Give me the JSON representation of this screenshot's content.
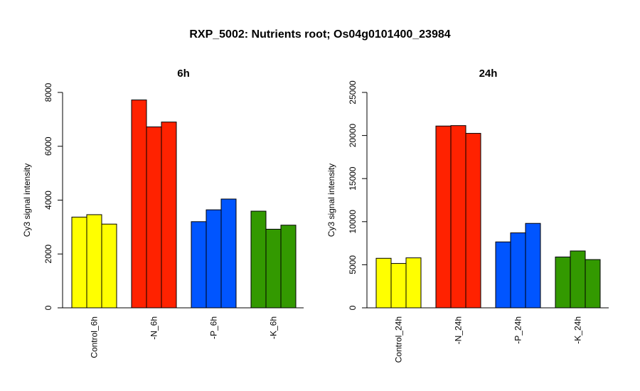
{
  "title": "RXP_5002: Nutrients root; Os04g0101400_23984",
  "chart_data": [
    {
      "type": "bar",
      "title": "6h",
      "ylabel": "Cy3 signal intensity",
      "ylim": [
        0,
        8000
      ],
      "yticks": [
        0,
        2000,
        4000,
        6000,
        8000
      ],
      "categories": [
        "Control_6h",
        "-N_6h",
        "-P_6h",
        "-K_6h"
      ],
      "colors": [
        "#FFFF00",
        "#FF2200",
        "#0055FF",
        "#339900"
      ],
      "values": [
        [
          3370,
          3460,
          3110
        ],
        [
          7720,
          6720,
          6900
        ],
        [
          3200,
          3640,
          4040
        ],
        [
          3590,
          2920,
          3070
        ]
      ]
    },
    {
      "type": "bar",
      "title": "24h",
      "ylabel": "Cy3 signal intensity",
      "ylim": [
        0,
        25000
      ],
      "yticks": [
        0,
        5000,
        10000,
        15000,
        20000,
        25000
      ],
      "categories": [
        "Control_24h",
        "-N_24h",
        "-P_24h",
        "-K_24h"
      ],
      "colors": [
        "#FFFF00",
        "#FF2200",
        "#0055FF",
        "#339900"
      ],
      "values": [
        [
          5750,
          5150,
          5800
        ],
        [
          21100,
          21150,
          20250
        ],
        [
          7650,
          8700,
          9800
        ],
        [
          5900,
          6600,
          5600
        ]
      ]
    }
  ]
}
